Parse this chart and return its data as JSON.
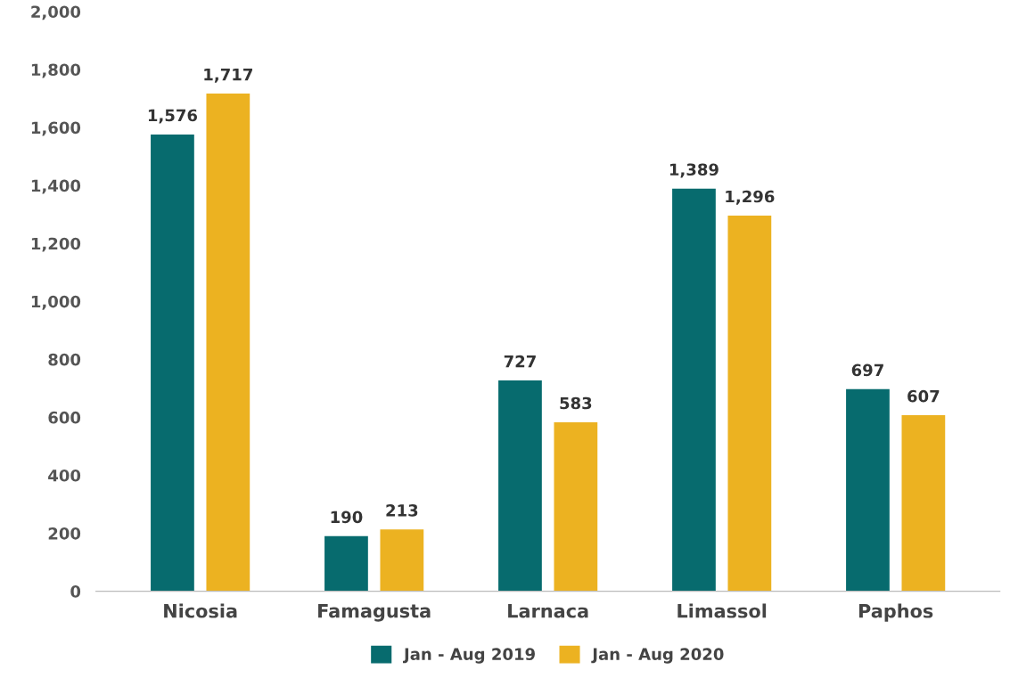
{
  "chart_data": {
    "type": "bar",
    "categories": [
      "Nicosia",
      "Famagusta",
      "Larnaca",
      "Limassol",
      "Paphos"
    ],
    "series": [
      {
        "name": "Jan - Aug 2019",
        "color": "#076b6e",
        "values": [
          1576,
          190,
          727,
          1389,
          697
        ],
        "value_labels": [
          "1,576",
          "190",
          "727",
          "1,389",
          "697"
        ]
      },
      {
        "name": "Jan - Aug 2020",
        "color": "#ecb221",
        "values": [
          1717,
          213,
          583,
          1296,
          607
        ],
        "value_labels": [
          "1,717",
          "213",
          "583",
          "1,296",
          "607"
        ]
      }
    ],
    "ylim": [
      0,
      2000
    ],
    "yticks": [
      0,
      {
        "value": 200,
        "label": "200"
      },
      400,
      600,
      800,
      {
        "value": 1000,
        "label": "1,000"
      },
      {
        "value": 1200,
        "label": "1,200"
      },
      {
        "value": 1400,
        "label": "1,400"
      },
      {
        "value": 1600,
        "label": "1,600"
      },
      {
        "value": 1800,
        "label": "1,800"
      },
      {
        "value": 2000,
        "label": "2,000"
      }
    ],
    "grid": false,
    "legend": "bottom"
  }
}
